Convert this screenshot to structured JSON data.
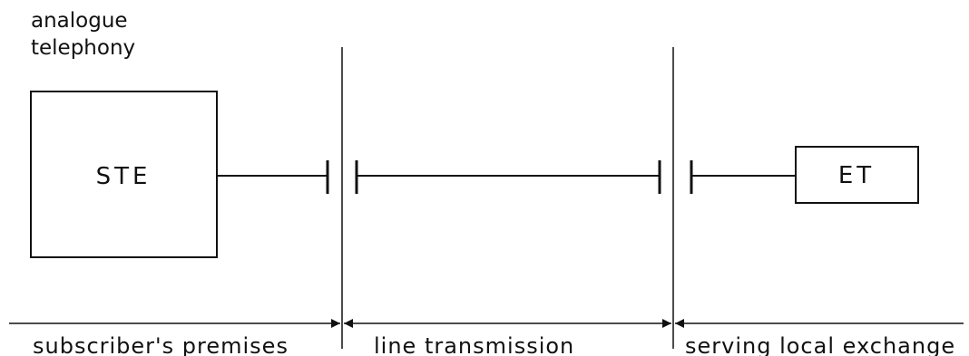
{
  "title": {
    "line1": "analogue",
    "line2": "telephony"
  },
  "boxes": {
    "ste": "STE",
    "et": "ET"
  },
  "zones": {
    "subscriber": "subscriber's premises",
    "line": "line transmission",
    "exchange": "serving local exchange"
  },
  "colors": {
    "ink": "#111111",
    "background": "#ffffff"
  }
}
